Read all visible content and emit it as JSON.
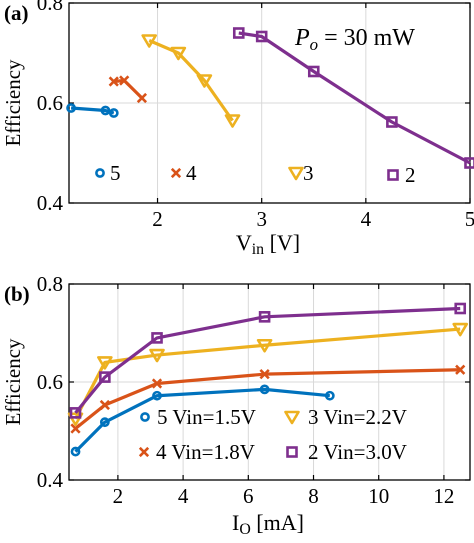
{
  "chart_data": [
    {
      "panel_label": "(a)",
      "type": "line",
      "annotation": "P",
      "annotation_sub": "o",
      "annotation_rest": " = 30 mW",
      "xlabel": "V",
      "xlabel_sub": "in",
      "xlabel_rest": " [V]",
      "ylabel": "Efficiency",
      "xlim": [
        1.15,
        5
      ],
      "ylim": [
        0.4,
        0.8
      ],
      "xticks": [
        2,
        3,
        4,
        5
      ],
      "yticks": [
        0.4,
        0.6,
        0.8
      ],
      "grid": true,
      "legend_position": "bottom inside",
      "series": [
        {
          "name": "5",
          "color": "#0072BD",
          "marker": "circle",
          "x": [
            1.17,
            1.5,
            1.58
          ],
          "y": [
            0.59,
            0.585,
            0.58
          ]
        },
        {
          "name": "4",
          "color": "#D95319",
          "marker": "x",
          "x": [
            1.58,
            1.68,
            1.85
          ],
          "y": [
            0.643,
            0.645,
            0.61
          ]
        },
        {
          "name": "3",
          "color": "#EDB120",
          "marker": "triangle-down",
          "x": [
            1.92,
            2.2,
            2.45,
            2.72
          ],
          "y": [
            0.725,
            0.7,
            0.645,
            0.565
          ]
        },
        {
          "name": "2",
          "color": "#7E2F8E",
          "marker": "square",
          "x": [
            2.78,
            3.0,
            3.5,
            4.25,
            5.0
          ],
          "y": [
            0.74,
            0.733,
            0.663,
            0.562,
            0.48
          ]
        }
      ]
    },
    {
      "panel_label": "(b)",
      "type": "line",
      "xlabel": "I",
      "xlabel_sub": "O",
      "xlabel_rest": " [mA]",
      "ylabel": "Efficiency",
      "xlim": [
        0.5,
        12.8
      ],
      "ylim": [
        0.4,
        0.8
      ],
      "xticks": [
        2,
        4,
        6,
        8,
        10,
        12
      ],
      "yticks": [
        0.4,
        0.6,
        0.8
      ],
      "grid": true,
      "legend_position": "bottom inside",
      "series": [
        {
          "name": "5 Vin=1.5V",
          "color": "#0072BD",
          "marker": "circle",
          "x": [
            0.7,
            1.6,
            3.2,
            6.5,
            8.5
          ],
          "y": [
            0.458,
            0.518,
            0.572,
            0.585,
            0.572
          ]
        },
        {
          "name": "4 Vin=1.8V",
          "color": "#D95319",
          "marker": "x",
          "x": [
            0.7,
            1.6,
            3.2,
            6.5,
            12.5
          ],
          "y": [
            0.505,
            0.553,
            0.597,
            0.616,
            0.625
          ]
        },
        {
          "name": "3 Vin=2.2V",
          "color": "#EDB120",
          "marker": "triangle-down",
          "x": [
            0.7,
            1.6,
            3.2,
            6.5,
            12.5
          ],
          "y": [
            0.525,
            0.64,
            0.655,
            0.675,
            0.708
          ]
        },
        {
          "name": "2 Vin=3.0V",
          "color": "#7E2F8E",
          "marker": "square",
          "x": [
            0.7,
            1.6,
            3.2,
            6.5,
            12.5
          ],
          "y": [
            0.537,
            0.61,
            0.69,
            0.733,
            0.75
          ]
        }
      ]
    }
  ]
}
